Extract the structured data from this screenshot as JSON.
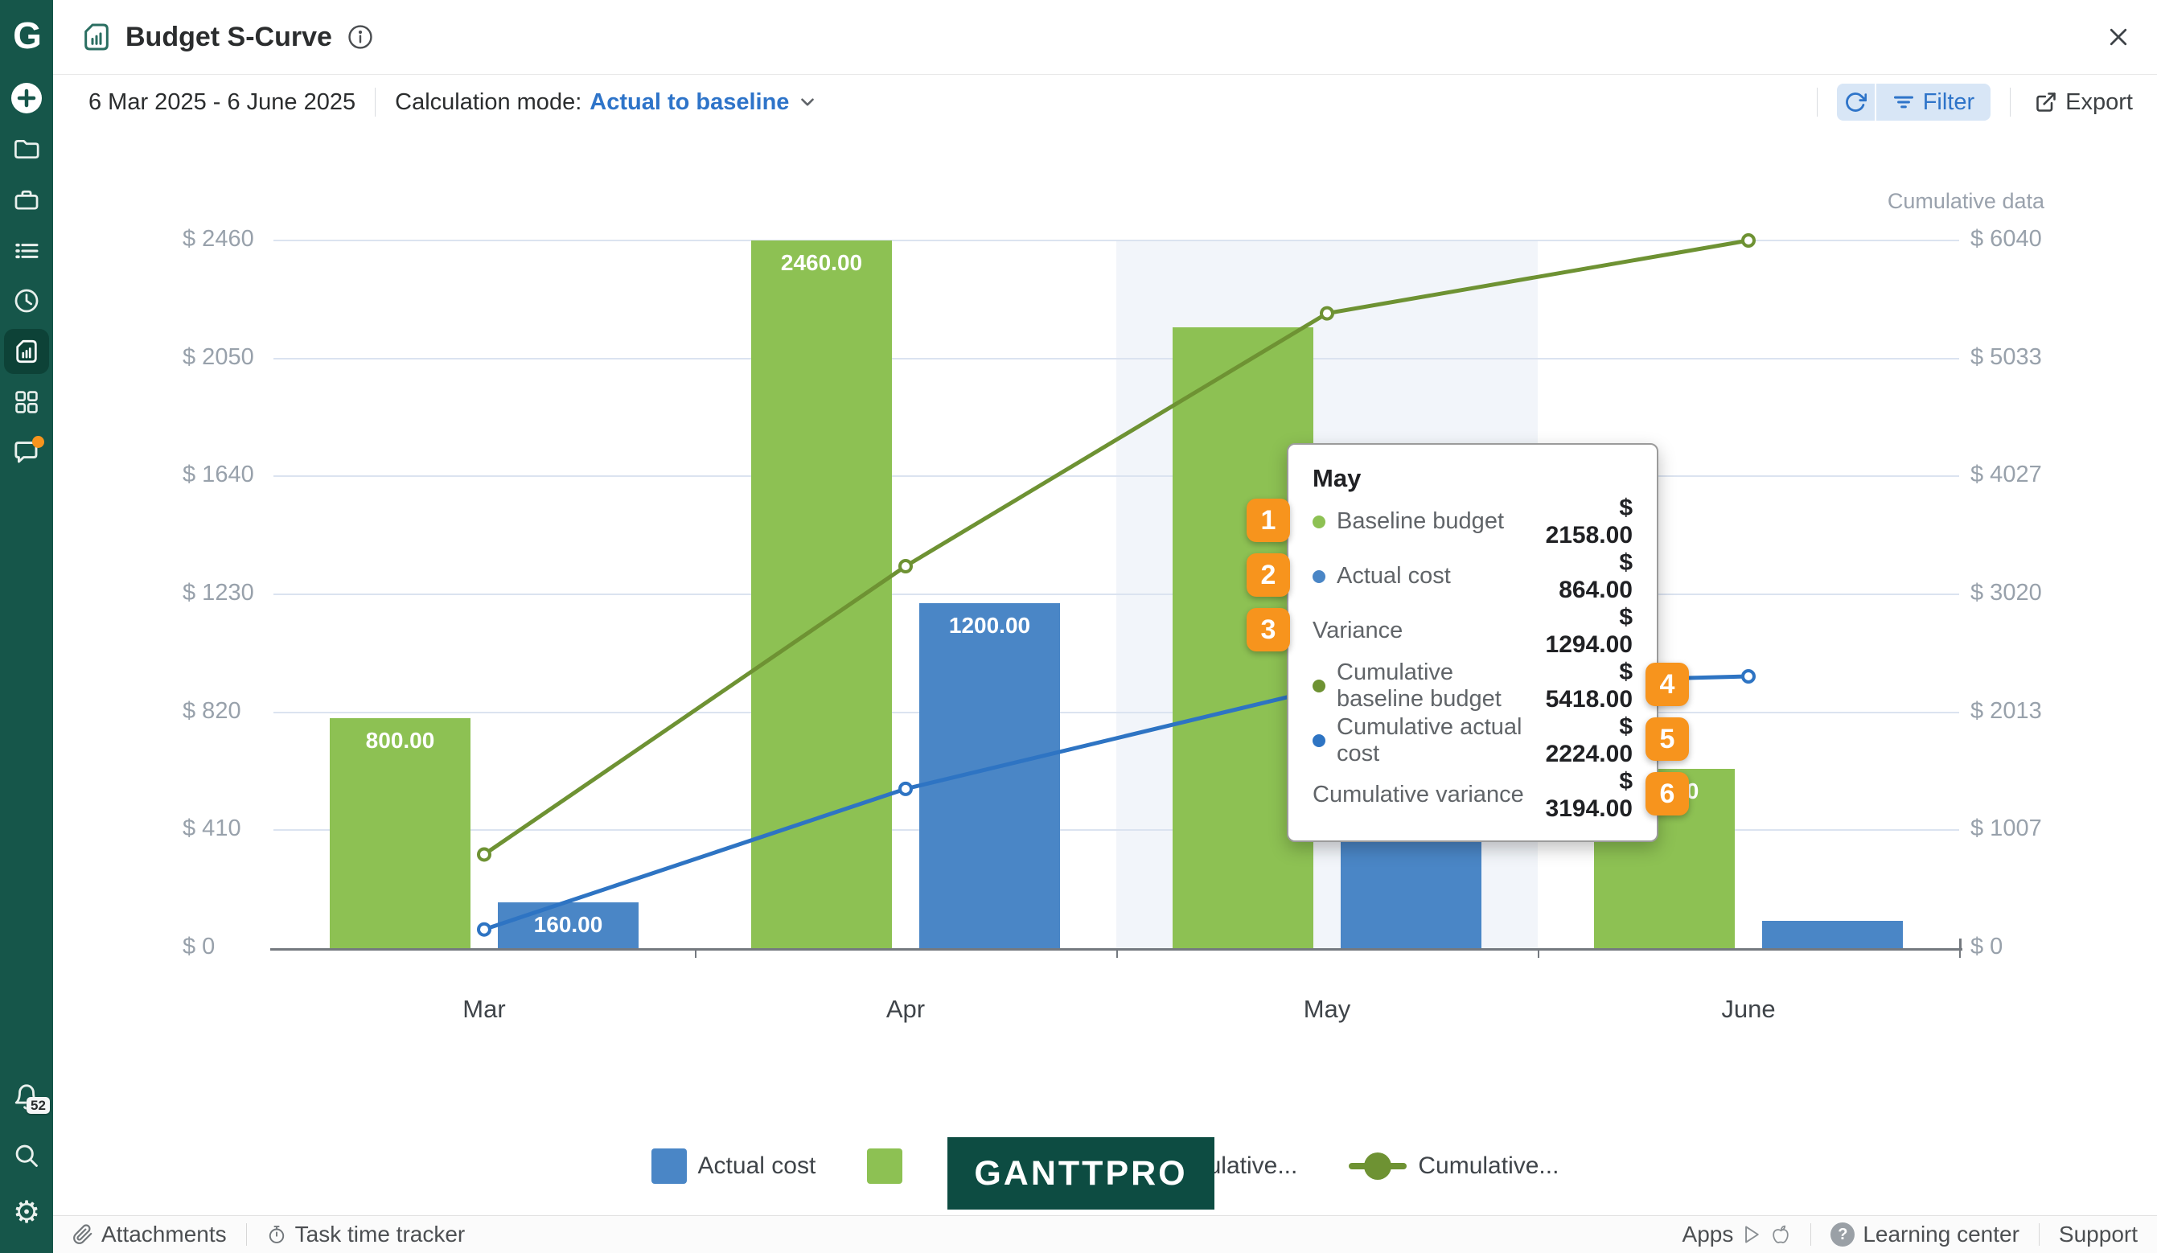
{
  "header": {
    "title": "Budget S-Curve"
  },
  "toolbar": {
    "date_range": "6 Mar 2025 - 6 June 2025",
    "calculation_mode_label": "Calculation mode:",
    "calculation_mode_value": "Actual to baseline",
    "filter_label": "Filter",
    "export_label": "Export"
  },
  "sidebar": {
    "logo": "G",
    "notification_count": "52",
    "items": [
      "add",
      "projects-folder",
      "portfolio-briefcase",
      "task-list",
      "time-log",
      "reports (active)",
      "apps-grid",
      "comments",
      "notifications-bell",
      "search",
      "settings-gear"
    ]
  },
  "chart_data": {
    "type": "combo bar+line (budget S-curve)",
    "categories": [
      "Mar",
      "Apr",
      "May",
      "June"
    ],
    "series": [
      {
        "name": "Baseline budget",
        "type": "bar",
        "axis": "left",
        "color": "#8dc153",
        "values": [
          800,
          2460,
          2158,
          622
        ],
        "bar_labels": [
          "800.00",
          "2460.00",
          "",
          "622.00"
        ]
      },
      {
        "name": "Actual cost",
        "type": "bar",
        "axis": "left",
        "color": "#4a86c6",
        "values": [
          160,
          1200,
          864,
          96
        ],
        "bar_labels": [
          "160.00",
          "1200.00",
          "",
          ""
        ]
      },
      {
        "name": "Cumulative baseline budget",
        "type": "line",
        "axis": "right",
        "color": "#6e9233",
        "values": [
          800,
          3260,
          5418,
          6040
        ]
      },
      {
        "name": "Cumulative actual cost",
        "type": "line",
        "axis": "right",
        "color": "#2e74c3",
        "values": [
          160,
          1360,
          2224,
          2320
        ]
      }
    ],
    "left_axis": {
      "ticks_bottom_up": [
        "$ 0",
        "$ 410",
        "$ 820",
        "$ 1230",
        "$ 1640",
        "$ 2050",
        "$ 2460"
      ],
      "max": 2460
    },
    "right_axis": {
      "title": "Cumulative data",
      "ticks_bottom_up": [
        "$ 0",
        "$ 1007",
        "$ 2013",
        "$ 3020",
        "$ 4027",
        "$ 5033",
        "$ 6040"
      ],
      "max": 6040
    },
    "highlighted_category": "May",
    "grid": true,
    "legend_position": "bottom"
  },
  "tooltip": {
    "title": "May",
    "rows": [
      {
        "badge": "1",
        "badge_side": "left",
        "dot": "#8dc153",
        "label": "Baseline budget",
        "value": "$ 2158.00"
      },
      {
        "badge": "2",
        "badge_side": "left",
        "dot": "#4a86c6",
        "label": "Actual cost",
        "value": "$ 864.00"
      },
      {
        "badge": "3",
        "badge_side": "left",
        "dot": "",
        "label": "Variance",
        "value": "$ 1294.00"
      },
      {
        "badge": "4",
        "badge_side": "right",
        "dot": "#6e9233",
        "label": "Cumulative baseline budget",
        "value": "$ 5418.00"
      },
      {
        "badge": "5",
        "badge_side": "right",
        "dot": "#2e74c3",
        "label": "Cumulative actual cost",
        "value": "$ 2224.00"
      },
      {
        "badge": "6",
        "badge_side": "right",
        "dot": "",
        "label": "Cumulative variance",
        "value": "$ 3194.00"
      }
    ]
  },
  "legend": {
    "items": [
      {
        "marker": "square",
        "color": "#4a86c6",
        "label": "Actual cost"
      },
      {
        "marker": "square",
        "color": "#8dc153",
        "label": ""
      },
      {
        "marker": "none",
        "color": "",
        "label": "Cumulative..."
      },
      {
        "marker": "line",
        "color": "#6e9233",
        "label": "Cumulative..."
      }
    ]
  },
  "watermark": {
    "text": "GANTTPRO"
  },
  "footer": {
    "attachments": "Attachments",
    "task_time_tracker": "Task time tracker",
    "apps": "Apps",
    "learning_center": "Learning center",
    "support": "Support"
  }
}
